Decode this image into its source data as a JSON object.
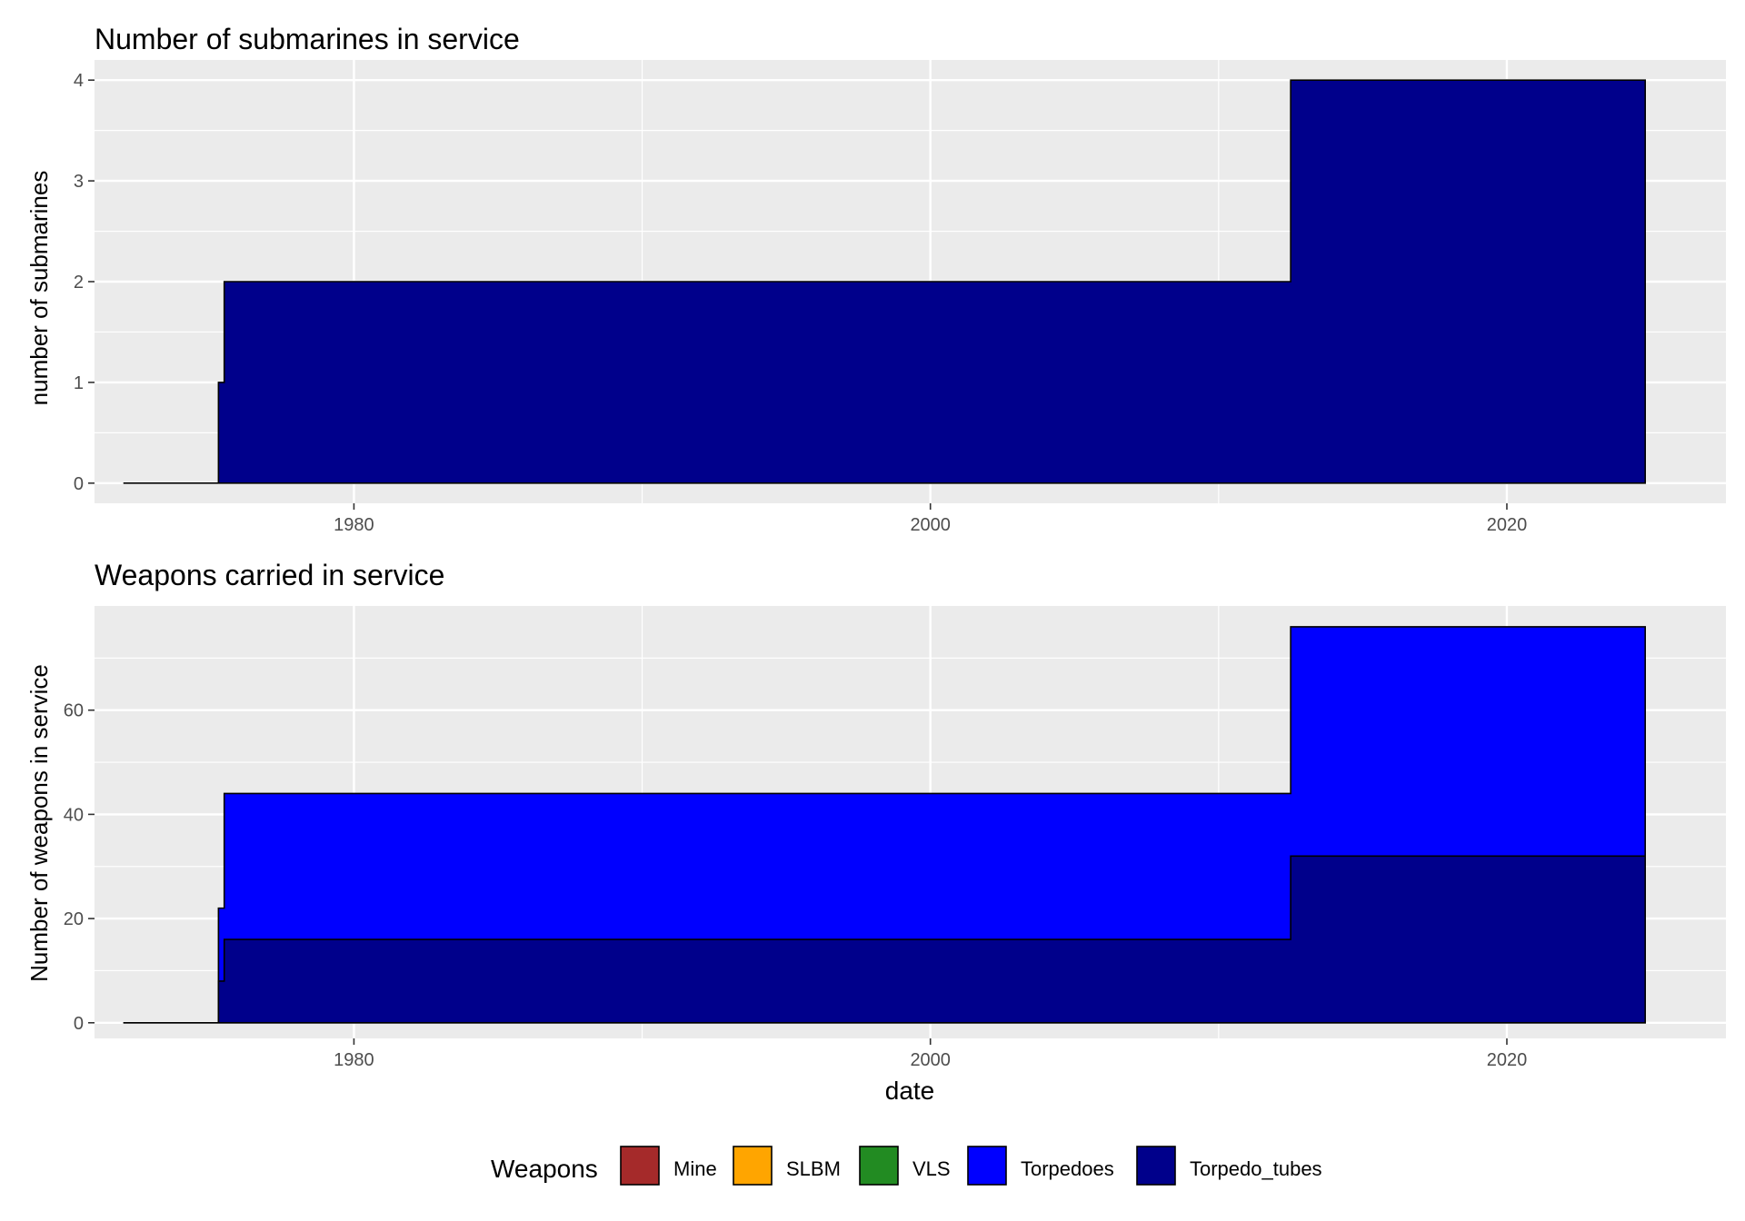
{
  "chart_data": [
    {
      "type": "area",
      "title": "Number of submarines in service",
      "xlabel": "",
      "ylabel": "number of submarines",
      "xlim": [
        1971.0,
        2027.6
      ],
      "ylim": [
        -0.2,
        4.2
      ],
      "x_ticks": [
        1980,
        2000,
        2020
      ],
      "x_tick_labels": [
        "1980",
        "2000",
        "2020"
      ],
      "y_ticks": [
        0,
        1,
        2,
        3,
        4
      ],
      "y_tick_labels": [
        "0",
        "1",
        "2",
        "3",
        "4"
      ],
      "grid": true,
      "series": [
        {
          "name": "Torpedo_tubes",
          "color": "#00008B",
          "points": [
            [
              1972.0,
              0
            ],
            [
              1975.3,
              0
            ],
            [
              1975.3,
              1
            ],
            [
              1975.5,
              1
            ],
            [
              1975.5,
              2
            ],
            [
              2012.5,
              2
            ],
            [
              2012.5,
              4
            ],
            [
              2024.8,
              4
            ],
            [
              2024.8,
              0
            ]
          ]
        }
      ]
    },
    {
      "type": "area",
      "title": "Weapons carried in service",
      "xlabel": "date",
      "ylabel": "Number of weapons in service",
      "xlim": [
        1971.0,
        2027.6
      ],
      "ylim": [
        -3,
        80
      ],
      "x_ticks": [
        1980,
        2000,
        2020
      ],
      "x_tick_labels": [
        "1980",
        "2000",
        "2020"
      ],
      "y_ticks": [
        0,
        20,
        40,
        60
      ],
      "y_tick_labels": [
        "0",
        "20",
        "40",
        "60"
      ],
      "grid": true,
      "series": [
        {
          "name": "Torpedoes",
          "color": "#0000FF",
          "points": [
            [
              1972.0,
              0
            ],
            [
              1975.3,
              0
            ],
            [
              1975.3,
              22
            ],
            [
              1975.5,
              22
            ],
            [
              1975.5,
              44
            ],
            [
              2012.5,
              44
            ],
            [
              2012.5,
              76
            ],
            [
              2024.8,
              76
            ],
            [
              2024.8,
              0
            ]
          ]
        },
        {
          "name": "Torpedo_tubes",
          "color": "#00008B",
          "points": [
            [
              1972.0,
              0
            ],
            [
              1975.3,
              0
            ],
            [
              1975.3,
              8
            ],
            [
              1975.5,
              8
            ],
            [
              1975.5,
              16
            ],
            [
              2012.5,
              16
            ],
            [
              2012.5,
              32
            ],
            [
              2024.8,
              32
            ],
            [
              2024.8,
              0
            ]
          ]
        }
      ]
    }
  ],
  "legend": {
    "title": "Weapons",
    "position": "bottom",
    "items": [
      {
        "label": "Mine",
        "color": "#A52A2A"
      },
      {
        "label": "SLBM",
        "color": "#FFA500"
      },
      {
        "label": "VLS",
        "color": "#228B22"
      },
      {
        "label": "Torpedoes",
        "color": "#0000FF"
      },
      {
        "label": "Torpedo_tubes",
        "color": "#00008B"
      }
    ]
  }
}
